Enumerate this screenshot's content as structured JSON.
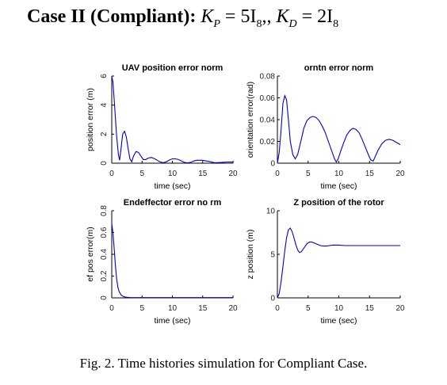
{
  "heading": {
    "bold_text": "Case II (Compliant):",
    "math_text": "K",
    "math_sub": "P",
    "eq1": " = 5I",
    "eq1_sub": "8",
    "sep": ",, ",
    "math_text2": "K",
    "math_sub2": "D",
    "eq2": " = 2I",
    "eq2_sub": "8"
  },
  "caption": "Fig. 2.  Time histories simulation for Compliant Case.",
  "colors": {
    "line": "#0000cc",
    "axis": "#000000"
  },
  "chart_data": [
    {
      "type": "line",
      "title": "UAV position error norm",
      "xlabel": "time (sec)",
      "ylabel": "position error (m)",
      "xlim": [
        0,
        20
      ],
      "ylim": [
        0,
        6
      ],
      "xticks": [
        "0",
        "5",
        "10",
        "15",
        "20"
      ],
      "yticks": [
        "0",
        "2",
        "4",
        "6"
      ],
      "x": [
        0,
        0.2,
        0.5,
        0.8,
        1.1,
        1.3,
        1.5,
        1.8,
        2.1,
        2.4,
        2.7,
        3.0,
        3.3,
        3.6,
        4.0,
        4.4,
        4.8,
        5.2,
        5.6,
        6.0,
        6.5,
        7.0,
        7.5,
        8.0,
        8.5,
        9.0,
        9.5,
        10,
        10.5,
        11,
        11.5,
        12,
        12.5,
        13,
        13.5,
        14,
        15,
        16,
        17,
        18,
        19,
        20
      ],
      "y": [
        6.0,
        5.6,
        3.8,
        1.9,
        0.6,
        0.2,
        0.9,
        2.0,
        2.2,
        1.8,
        1.0,
        0.3,
        0.1,
        0.5,
        0.8,
        0.75,
        0.5,
        0.25,
        0.25,
        0.35,
        0.4,
        0.32,
        0.2,
        0.08,
        0.03,
        0.1,
        0.22,
        0.3,
        0.3,
        0.25,
        0.15,
        0.05,
        0.02,
        0.05,
        0.15,
        0.2,
        0.2,
        0.12,
        0.03,
        0.05,
        0.08,
        0.08
      ]
    },
    {
      "type": "line",
      "title": "orntn error norm",
      "xlabel": "time (sec)",
      "ylabel": "orientation error(rad)",
      "xlim": [
        0,
        20
      ],
      "ylim": [
        0,
        0.08
      ],
      "xticks": [
        "0",
        "5",
        "10",
        "15",
        "20"
      ],
      "yticks": [
        "0",
        "0.02",
        "0.04",
        "0.06",
        "0.08"
      ],
      "x": [
        0,
        0.3,
        0.6,
        0.9,
        1.2,
        1.5,
        1.8,
        2.1,
        2.5,
        2.9,
        3.3,
        3.6,
        3.9,
        4.3,
        4.8,
        5.3,
        5.8,
        6.3,
        6.8,
        7.3,
        7.8,
        8.3,
        8.8,
        9.3,
        9.6,
        9.9,
        10.3,
        10.8,
        11.3,
        11.8,
        12.3,
        12.8,
        13.3,
        13.8,
        14.3,
        14.8,
        15.2,
        15.6,
        16.0,
        16.4,
        17.0,
        17.6,
        18.2,
        18.8,
        19.4,
        20
      ],
      "y": [
        0.0,
        0.01,
        0.03,
        0.055,
        0.062,
        0.058,
        0.04,
        0.02,
        0.008,
        0.004,
        0.008,
        0.015,
        0.022,
        0.032,
        0.039,
        0.042,
        0.043,
        0.042,
        0.039,
        0.034,
        0.028,
        0.02,
        0.012,
        0.004,
        0.001,
        0.004,
        0.011,
        0.019,
        0.026,
        0.03,
        0.032,
        0.031,
        0.028,
        0.022,
        0.015,
        0.008,
        0.003,
        0.002,
        0.007,
        0.012,
        0.018,
        0.021,
        0.022,
        0.021,
        0.019,
        0.017
      ]
    },
    {
      "type": "line",
      "title": "Endeffector error no rm",
      "xlabel": "time (sec)",
      "ylabel": "ef pos error(m)",
      "xlim": [
        0,
        20
      ],
      "ylim": [
        0,
        0.8
      ],
      "xticks": [
        "0",
        "5",
        "10",
        "15",
        "20"
      ],
      "yticks": [
        "0",
        "0.2",
        "0.4",
        "0.6",
        "0.8"
      ],
      "x": [
        0,
        0.2,
        0.4,
        0.6,
        0.8,
        1.0,
        1.2,
        1.5,
        1.8,
        2.2,
        2.6,
        3.0,
        4,
        6,
        8,
        10,
        12,
        14,
        16,
        18,
        20
      ],
      "y": [
        0.68,
        0.6,
        0.45,
        0.3,
        0.18,
        0.1,
        0.06,
        0.03,
        0.015,
        0.008,
        0.005,
        0.003,
        0.002,
        0.002,
        0.002,
        0.002,
        0.002,
        0.002,
        0.002,
        0.002,
        0.002
      ]
    },
    {
      "type": "line",
      "title": "Z position of the rotor",
      "xlabel": "time (sec)",
      "ylabel": "z position (m)",
      "xlim": [
        0,
        20
      ],
      "ylim": [
        0,
        10
      ],
      "xticks": [
        "0",
        "5",
        "10",
        "15",
        "20"
      ],
      "yticks": [
        "0",
        "5",
        "10"
      ],
      "x": [
        0,
        0.3,
        0.6,
        0.9,
        1.2,
        1.5,
        1.8,
        2.1,
        2.4,
        2.7,
        3.0,
        3.3,
        3.6,
        3.9,
        4.2,
        4.5,
        4.8,
        5.2,
        5.6,
        6.0,
        6.5,
        7.0,
        7.5,
        8.0,
        8.5,
        9.0,
        10,
        11,
        12,
        13,
        14,
        15,
        16,
        17,
        18,
        19,
        20
      ],
      "y": [
        0,
        0.5,
        1.8,
        3.6,
        5.4,
        6.9,
        7.8,
        8.0,
        7.6,
        6.9,
        6.1,
        5.5,
        5.2,
        5.3,
        5.6,
        5.9,
        6.2,
        6.4,
        6.4,
        6.3,
        6.15,
        6.0,
        5.95,
        5.95,
        6.0,
        6.05,
        6.05,
        6.0,
        6.0,
        6.0,
        6.0,
        6.0,
        6.0,
        6.0,
        6.0,
        6.0,
        6.0
      ]
    }
  ]
}
